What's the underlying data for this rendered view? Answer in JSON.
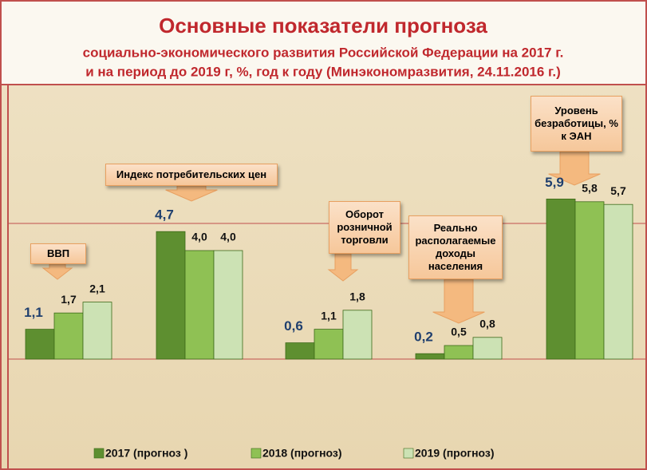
{
  "chart_data": {
    "type": "bar",
    "title": "Основные  показатели прогноза",
    "subtitle": [
      "социально-экономического развития Российской Федерации на 2017 г.",
      "и на период до 2019 г,  %, год к году (Минэкономразвития,  24.11.2016 г.)"
    ],
    "categories": [
      "ВВП",
      "Индекс потребительских цен",
      "Оборот розничной торговли",
      "Реально располагаемые доходы населения",
      "Уровень безработицы, % к ЭАН"
    ],
    "series": [
      {
        "name": "2017 (прогноз )",
        "color": "#5e8f30",
        "values": [
          1.1,
          4.7,
          0.6,
          0.2,
          5.9
        ],
        "value_labels": [
          "1,1",
          "4,7",
          "0,6",
          "0,2",
          "5,9"
        ]
      },
      {
        "name": "2018  (прогноз)",
        "color": "#8fc154",
        "values": [
          1.7,
          4.0,
          1.1,
          0.5,
          5.8
        ],
        "value_labels": [
          "1,7",
          "4,0",
          "1,1",
          "0,5",
          "5,8"
        ]
      },
      {
        "name": "2019  (прогноз)",
        "color": "#cce2b4",
        "values": [
          2.1,
          4.0,
          1.8,
          0.8,
          5.7
        ],
        "value_labels": [
          "2,1",
          "4,0",
          "1,8",
          "0,8",
          "5,7"
        ]
      }
    ],
    "ylim": [
      -4,
      10
    ],
    "yticks": [
      0,
      5
    ],
    "grid": true
  }
}
